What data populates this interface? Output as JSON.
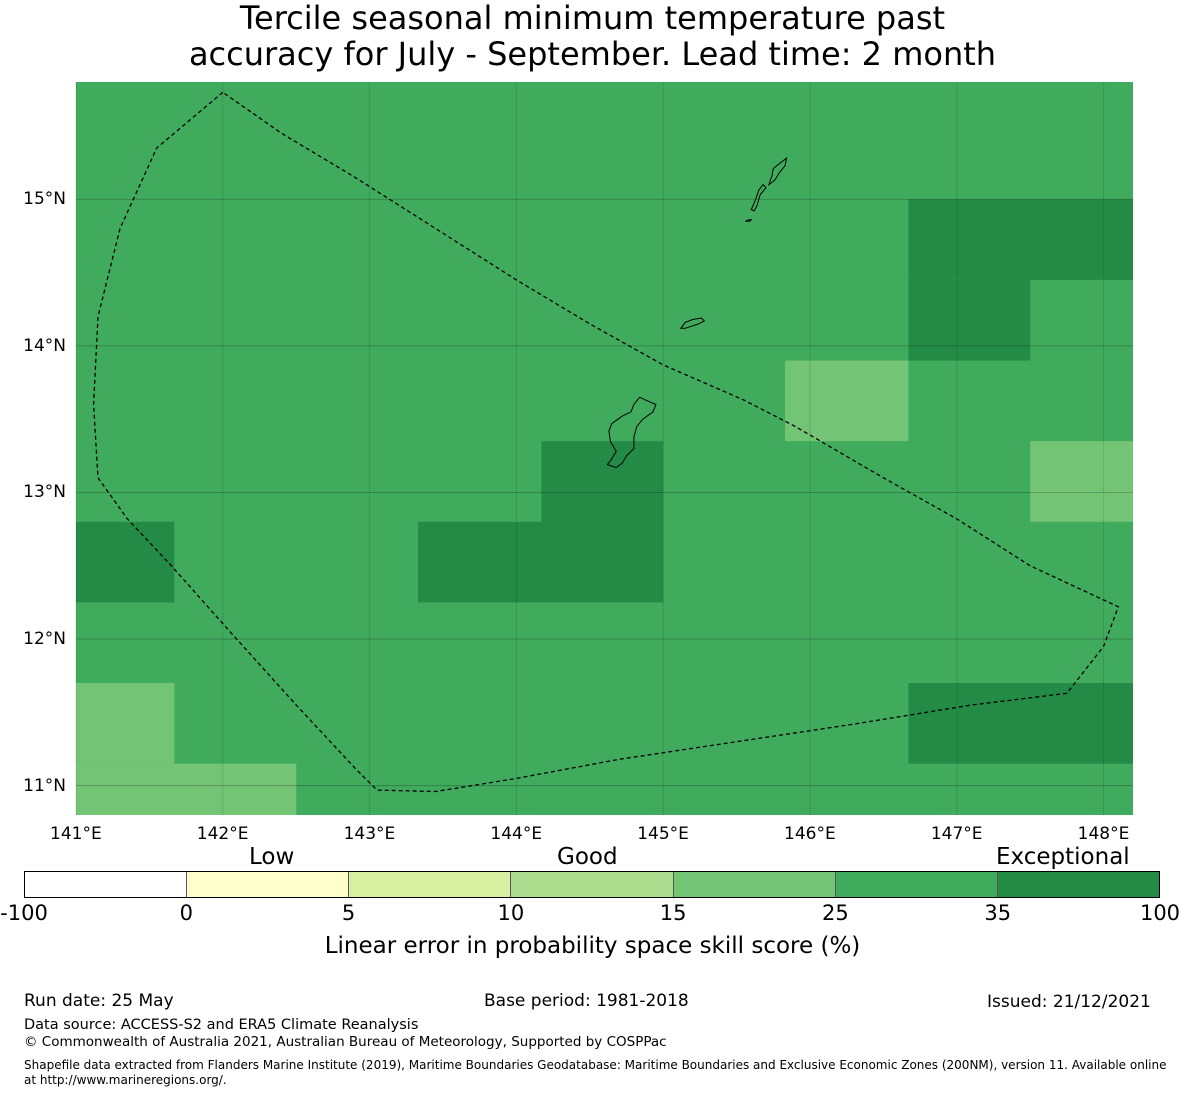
{
  "title": {
    "line1": "Tercile seasonal minimum temperature past",
    "line2": "accuracy for July - September. Lead time: 2 month"
  },
  "map": {
    "lon_labels": [
      "141°E",
      "142°E",
      "143°E",
      "144°E",
      "145°E",
      "146°E",
      "147°E",
      "148°E"
    ],
    "lat_labels": [
      "15°N",
      "14°N",
      "13°N",
      "12°N",
      "11°N"
    ],
    "lon_range": [
      141.0,
      148.2
    ],
    "lat_range": [
      10.8,
      15.8
    ],
    "grid": true,
    "base_color": "#41ab5d",
    "cells": [
      {
        "lon": [
          146.67,
          148.2
        ],
        "lat": [
          14.45,
          15.0
        ],
        "color": "#238b45",
        "category": "35-100"
      },
      {
        "lon": [
          146.67,
          147.5
        ],
        "lat": [
          13.9,
          14.45
        ],
        "color": "#238b45",
        "category": "35-100"
      },
      {
        "lon": [
          145.83,
          146.67
        ],
        "lat": [
          13.35,
          13.9
        ],
        "color": "#74c476",
        "category": "15-25"
      },
      {
        "lon": [
          147.5,
          148.2
        ],
        "lat": [
          12.8,
          13.35
        ],
        "color": "#74c476",
        "category": "15-25"
      },
      {
        "lon": [
          144.17,
          145.0
        ],
        "lat": [
          12.8,
          13.35
        ],
        "color": "#238b45",
        "category": "35-100"
      },
      {
        "lon": [
          143.33,
          145.0
        ],
        "lat": [
          12.25,
          12.8
        ],
        "color": "#238b45",
        "category": "35-100"
      },
      {
        "lon": [
          141.0,
          141.67
        ],
        "lat": [
          12.25,
          12.8
        ],
        "color": "#238b45",
        "category": "35-100"
      },
      {
        "lon": [
          141.0,
          141.67
        ],
        "lat": [
          11.15,
          11.7
        ],
        "color": "#74c476",
        "category": "15-25"
      },
      {
        "lon": [
          141.0,
          142.5
        ],
        "lat": [
          10.8,
          11.15
        ],
        "color": "#74c476",
        "category": "15-25"
      },
      {
        "lon": [
          146.67,
          148.2
        ],
        "lat": [
          11.15,
          11.7
        ],
        "color": "#238b45",
        "category": "35-100"
      }
    ],
    "eez_boundary": [
      [
        142.0,
        15.73
      ],
      [
        141.55,
        15.35
      ],
      [
        141.3,
        14.8
      ],
      [
        141.15,
        14.2
      ],
      [
        141.12,
        13.6
      ],
      [
        141.15,
        13.1
      ],
      [
        141.35,
        12.82
      ],
      [
        141.65,
        12.5
      ],
      [
        142.05,
        12.05
      ],
      [
        142.5,
        11.55
      ],
      [
        142.9,
        11.12
      ],
      [
        143.05,
        10.97
      ],
      [
        143.45,
        10.96
      ],
      [
        144.0,
        11.05
      ],
      [
        144.7,
        11.18
      ],
      [
        145.5,
        11.3
      ],
      [
        146.3,
        11.42
      ],
      [
        147.1,
        11.55
      ],
      [
        147.75,
        11.63
      ],
      [
        148.0,
        11.95
      ],
      [
        148.1,
        12.22
      ],
      [
        147.5,
        12.5
      ],
      [
        147.0,
        12.82
      ],
      [
        146.5,
        13.1
      ],
      [
        145.9,
        13.45
      ],
      [
        145.55,
        13.63
      ],
      [
        145.0,
        13.87
      ],
      [
        144.5,
        14.15
      ],
      [
        144.0,
        14.45
      ],
      [
        143.45,
        14.8
      ],
      [
        142.9,
        15.15
      ],
      [
        142.4,
        15.45
      ],
      [
        142.0,
        15.73
      ]
    ],
    "islands": [
      {
        "name": "Guam",
        "outline": [
          [
            144.62,
            13.19
          ],
          [
            144.65,
            13.23
          ],
          [
            144.68,
            13.28
          ],
          [
            144.64,
            13.35
          ],
          [
            144.63,
            13.42
          ],
          [
            144.65,
            13.47
          ],
          [
            144.72,
            13.52
          ],
          [
            144.78,
            13.55
          ],
          [
            144.8,
            13.6
          ],
          [
            144.84,
            13.65
          ],
          [
            144.88,
            13.63
          ],
          [
            144.95,
            13.6
          ],
          [
            144.93,
            13.55
          ],
          [
            144.86,
            13.5
          ],
          [
            144.82,
            13.45
          ],
          [
            144.8,
            13.38
          ],
          [
            144.8,
            13.3
          ],
          [
            144.75,
            13.25
          ],
          [
            144.72,
            13.2
          ],
          [
            144.68,
            13.17
          ],
          [
            144.62,
            13.19
          ]
        ]
      },
      {
        "name": "Rota",
        "outline": [
          [
            145.12,
            14.12
          ],
          [
            145.15,
            14.16
          ],
          [
            145.2,
            14.18
          ],
          [
            145.26,
            14.19
          ],
          [
            145.28,
            14.17
          ],
          [
            145.24,
            14.15
          ],
          [
            145.18,
            14.13
          ],
          [
            145.15,
            14.12
          ],
          [
            145.12,
            14.12
          ]
        ]
      },
      {
        "name": "Tinian",
        "outline": [
          [
            145.56,
            14.85
          ],
          [
            145.58,
            14.86
          ],
          [
            145.6,
            14.86
          ],
          [
            145.59,
            14.85
          ],
          [
            145.56,
            14.85
          ]
        ]
      },
      {
        "name": "Saipan",
        "outline": [
          [
            145.6,
            14.93
          ],
          [
            145.63,
            15.0
          ],
          [
            145.65,
            15.06
          ],
          [
            145.68,
            15.1
          ],
          [
            145.7,
            15.08
          ],
          [
            145.66,
            15.03
          ],
          [
            145.64,
            14.96
          ],
          [
            145.62,
            14.92
          ],
          [
            145.6,
            14.93
          ]
        ]
      },
      {
        "name": "Saipan-north",
        "outline": [
          [
            145.72,
            15.1
          ],
          [
            145.74,
            15.16
          ],
          [
            145.75,
            15.21
          ],
          [
            145.8,
            15.25
          ],
          [
            145.84,
            15.28
          ],
          [
            145.83,
            15.23
          ],
          [
            145.79,
            15.18
          ],
          [
            145.76,
            15.13
          ],
          [
            145.72,
            15.1
          ]
        ]
      }
    ]
  },
  "colorbar": {
    "categories": [
      "Low",
      "Good",
      "Exceptional"
    ],
    "ticks": [
      "-100",
      "0",
      "5",
      "10",
      "15",
      "25",
      "35",
      "100"
    ],
    "colors": [
      "#ffffff",
      "#ffffcc",
      "#d9f0a3",
      "#addd8e",
      "#74c476",
      "#41ab5d",
      "#238b45"
    ],
    "label": "Linear error in probability space skill score (%)"
  },
  "footer": {
    "run_date": "Run date: 25 May",
    "base_period": "Base period: 1981-2018",
    "issued": "Issued: 21/12/2021",
    "data_source": "Data source: ACCESS-S2 and ERA5 Climate Reanalysis",
    "copyright": "© Commonwealth of Australia 2021, Australian Bureau of Meteorology, Supported by COSPPac",
    "shapefile": "Shapefile data extracted from Flanders Marine Institute (2019), Maritime Boundaries Geodatabase: Maritime Boundaries and Exclusive Economic Zones (200NM), version 11. Available online at http://www.marineregions.org/."
  }
}
